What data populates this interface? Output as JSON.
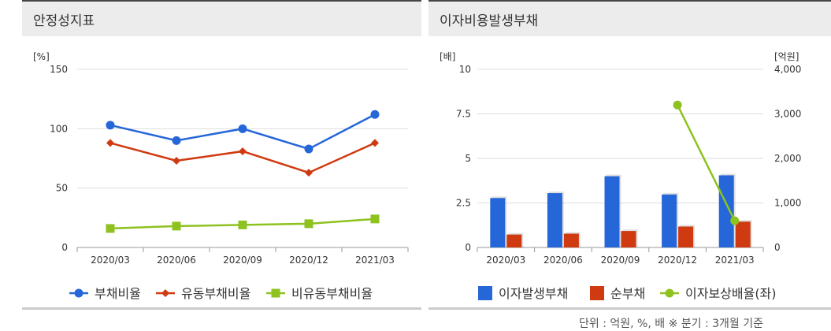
{
  "panels": {
    "left_title": "안정성지표",
    "right_title": "이자비용발생부채"
  },
  "footnote": "단위 : 억원, %, 배   ※ 분기 : 3개월 기준",
  "chart_data": [
    {
      "type": "line",
      "title": "안정성지표",
      "y_unit_label": "[%]",
      "categories": [
        "2020/03",
        "2020/06",
        "2020/09",
        "2020/12",
        "2021/03"
      ],
      "ylim": [
        0,
        150
      ],
      "yticks": [
        0,
        50,
        100,
        150
      ],
      "grid": true,
      "legend_position": "bottom",
      "series": [
        {
          "name": "부채비율",
          "color": "#2566d8",
          "marker": "circle",
          "values": [
            103,
            90,
            100,
            83,
            112
          ]
        },
        {
          "name": "유동부채비율",
          "color": "#d03a10",
          "marker": "diamond",
          "values": [
            88,
            73,
            81,
            63,
            88
          ]
        },
        {
          "name": "비유동부채비율",
          "color": "#8dc21f",
          "marker": "square",
          "values": [
            16,
            18,
            19,
            20,
            24
          ]
        }
      ]
    },
    {
      "type": "bar",
      "title": "이자비용발생부채",
      "y_unit_label_left": "[배]",
      "y_unit_label_right": "[억원]",
      "categories": [
        "2020/03",
        "2020/06",
        "2020/09",
        "2020/12",
        "2021/03"
      ],
      "ylim_left": [
        0,
        10
      ],
      "yticks_left": [
        "0",
        "2.5",
        "5",
        "7.5",
        "10"
      ],
      "ylim_right": [
        0,
        4000
      ],
      "yticks_right": [
        "0",
        "1,000",
        "2,000",
        "3,000",
        "4,000"
      ],
      "grid": true,
      "legend_position": "bottom",
      "bar_series": [
        {
          "name": "이자발생부채",
          "color": "#2566d8",
          "axis": "right",
          "values": [
            1110,
            1220,
            1600,
            1190,
            1620
          ]
        },
        {
          "name": "순부채",
          "color": "#d03a10",
          "axis": "right",
          "values": [
            290,
            310,
            370,
            470,
            580
          ]
        }
      ],
      "line_series": [
        {
          "name": "이자보상배율(좌)",
          "color": "#8dc21f",
          "axis": "left",
          "values": [
            null,
            null,
            null,
            8.0,
            1.5
          ]
        }
      ]
    }
  ]
}
